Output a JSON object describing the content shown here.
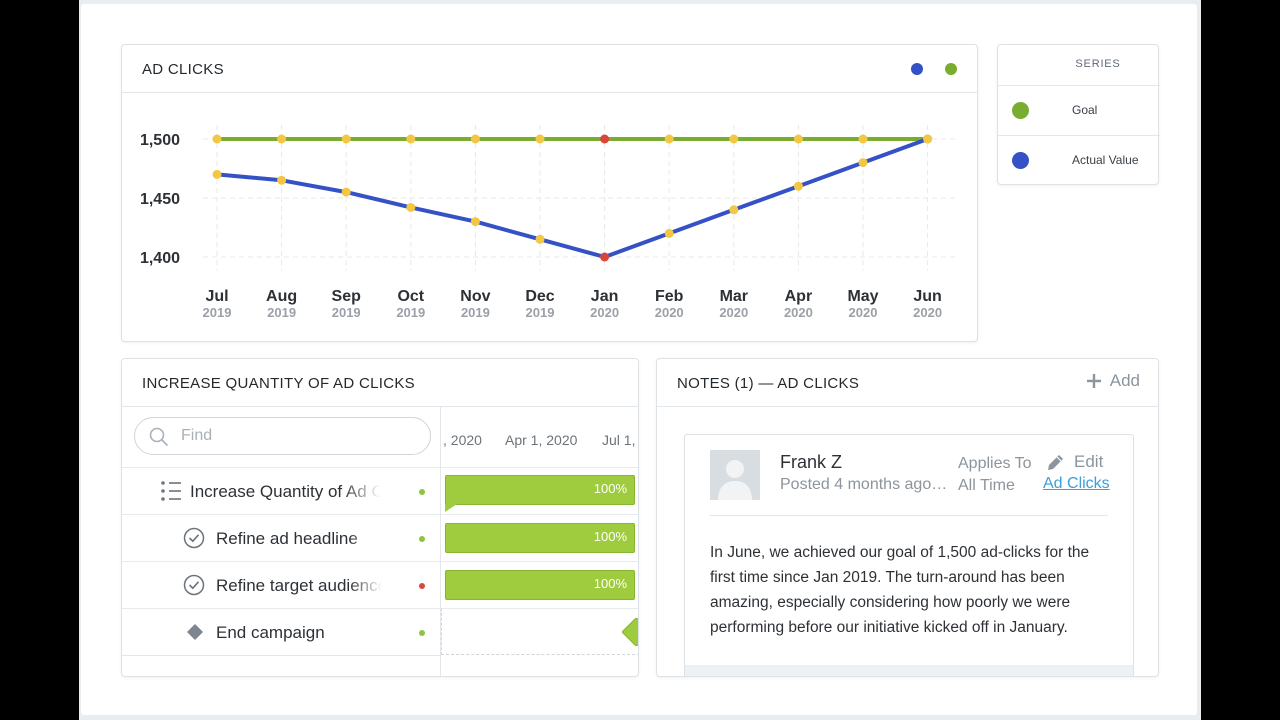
{
  "chart_card": {
    "title": "AD CLICKS",
    "legend_colors": [
      "#3451c5",
      "#79ad2f"
    ]
  },
  "chart_data": {
    "type": "line",
    "title": "AD CLICKS",
    "categories": [
      "Jul",
      "Aug",
      "Sep",
      "Oct",
      "Nov",
      "Dec",
      "Jan",
      "Feb",
      "Mar",
      "Apr",
      "May",
      "Jun"
    ],
    "category_years": [
      "2019",
      "2019",
      "2019",
      "2019",
      "2019",
      "2019",
      "2020",
      "2020",
      "2020",
      "2020",
      "2020",
      "2020"
    ],
    "y_ticks": [
      1500,
      1450,
      1400
    ],
    "y_tick_labels": [
      "1,500",
      "1,450",
      "1,400"
    ],
    "ylim": [
      1400,
      1500
    ],
    "grid": true,
    "series": [
      {
        "name": "Goal",
        "color": "#79ad2f",
        "values": [
          1500,
          1500,
          1500,
          1500,
          1500,
          1500,
          1500,
          1500,
          1500,
          1500,
          1500,
          1500
        ]
      },
      {
        "name": "Actual Value",
        "color": "#3451c5",
        "values": [
          1470,
          1465,
          1455,
          1442,
          1430,
          1415,
          1400,
          1420,
          1440,
          1460,
          1480,
          1500
        ]
      }
    ],
    "point_colors": {
      "default": "#f2c744",
      "jan": "#d9473a",
      "jun_goal": "#8cc63f"
    }
  },
  "series_card": {
    "header": "SERIES",
    "items": [
      {
        "label": "Goal",
        "color": "#79ad2f"
      },
      {
        "label": "Actual Value",
        "color": "#3451c5"
      }
    ]
  },
  "gantt": {
    "title": "INCREASE QUANTITY OF AD CLICKS",
    "search_placeholder": "Find",
    "timeline_dates": [
      ", 2020",
      "Apr 1, 2020",
      "Jul 1,"
    ],
    "tasks": [
      {
        "name": "Increase Quantity of Ad Clicks",
        "status_color": "#8cc63f",
        "progress_label": "100%"
      },
      {
        "name": "Refine ad headline",
        "status_color": "#8cc63f",
        "progress_label": "100%"
      },
      {
        "name": "Refine target audience",
        "status_color": "#d9473a",
        "progress_label": "100%"
      },
      {
        "name": "End campaign",
        "status_color": "#8cc63f",
        "progress_label": ""
      }
    ]
  },
  "notes": {
    "title": "NOTES (1) — AD CLICKS",
    "add_label": "Add",
    "note": {
      "author": "Frank Z",
      "posted": "Posted 4 months ago…",
      "applies_label": "Applies To",
      "applies_value": "All Time",
      "edit_label": "Edit",
      "link_label": "Ad Clicks",
      "body": "In June, we achieved our goal of 1,500 ad-clicks for the first time since Jan 2019. The turn-around has been amazing, especially considering how poorly we were performing before our initiative kicked off in January."
    }
  }
}
